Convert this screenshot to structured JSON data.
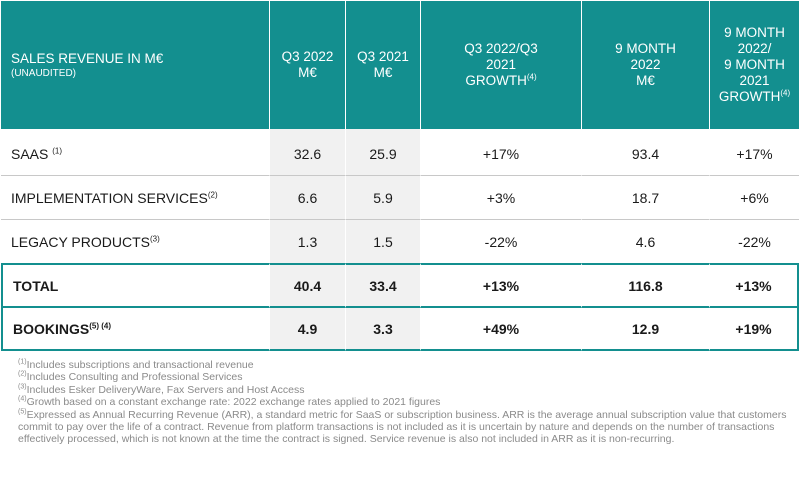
{
  "header": {
    "title": "SALES REVENUE IN M€",
    "subtitle": "(UNAUDITED)",
    "q3_2022": [
      "Q3 2022",
      "M€"
    ],
    "q3_2021": [
      "Q3 2021",
      "M€"
    ],
    "q3_growth": [
      "Q3 2022/Q3",
      "2021",
      "GROWTH"
    ],
    "q3_growth_note": "(4)",
    "nm_2022": [
      "9 MONTH",
      "2022",
      "M€"
    ],
    "nm_growth": [
      "9 MONTH",
      "2022/",
      "9 MONTH",
      "2021",
      "GROWTH"
    ],
    "nm_growth_note": "(4)"
  },
  "rows": [
    {
      "label": "SAAS ",
      "note": "(1)",
      "q3_2022": "32.6",
      "q3_2021": "25.9",
      "q3_growth": "+17%",
      "nm_2022": "93.4",
      "nm_growth": "+17%"
    },
    {
      "label": "IMPLEMENTATION SERVICES",
      "note": "(2)",
      "q3_2022": "6.6",
      "q3_2021": "5.9",
      "q3_growth": "+3%",
      "nm_2022": "18.7",
      "nm_growth": "+6%"
    },
    {
      "label": "LEGACY PRODUCTS",
      "note": "(3)",
      "q3_2022": "1.3",
      "q3_2021": "1.5",
      "q3_growth": "-22%",
      "nm_2022": "4.6",
      "nm_growth": "-22%"
    },
    {
      "label": "TOTAL",
      "note": "",
      "q3_2022": "40.4",
      "q3_2021": "33.4",
      "q3_growth": "+13%",
      "nm_2022": "116.8",
      "nm_growth": "+13%"
    },
    {
      "label": "BOOKINGS",
      "note": "(5) (4)",
      "q3_2022": "4.9",
      "q3_2021": "3.3",
      "q3_growth": "+49%",
      "nm_2022": "12.9",
      "nm_growth": "+19%"
    }
  ],
  "footnotes": [
    {
      "mark": "(1)",
      "text": "Includes subscriptions and transactional revenue"
    },
    {
      "mark": "(2)",
      "text": "Includes Consulting and Professional Services"
    },
    {
      "mark": "(3)",
      "text": "Includes Esker DeliveryWare, Fax Servers and Host Access"
    },
    {
      "mark": "(4)",
      "text": "Growth based on a constant exchange rate: 2022 exchange rates applied to 2021 figures"
    },
    {
      "mark": "(5)",
      "text": "Expressed as Annual Recurring Revenue (ARR), a standard metric for SaaS or subscription business. ARR is the average annual subscription value that customers commit to pay over the life of a contract. Revenue from platform transactions is not included as it is uncertain by nature and depends on the number of transactions effectively processed, which is not known at the time the contract is signed. Service revenue is also not included in ARR as it is non-recurring."
    }
  ],
  "colors": {
    "header_bg": "#138f8f",
    "border_accent": "#138f8f",
    "shaded_col": "#f1f1f1",
    "note_text": "#8a8a8a"
  }
}
